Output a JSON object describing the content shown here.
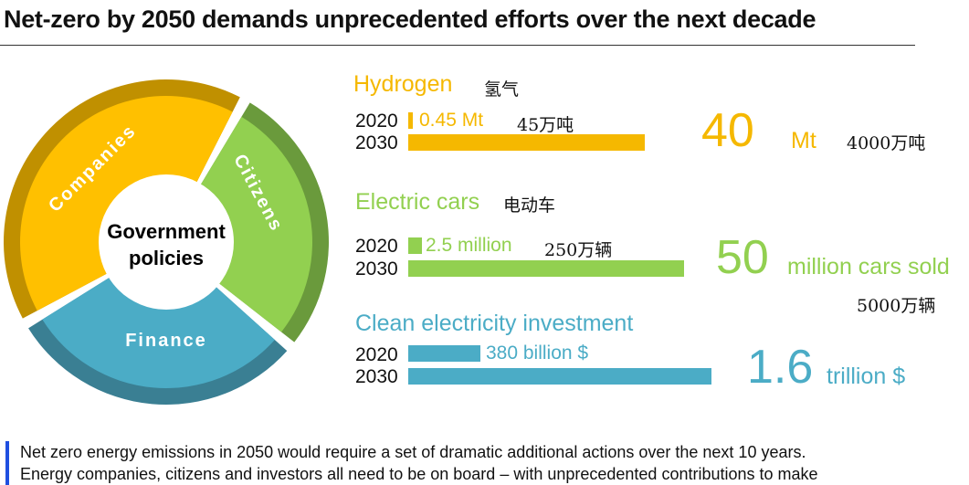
{
  "title": "Net-zero by 2050 demands unprecedented efforts over the next decade",
  "colors": {
    "hydrogen": "#f5b800",
    "electric": "#92d050",
    "clean": "#4bacc6",
    "companies_dark": "#c09000",
    "citizens_dark": "#6a9a3c",
    "finance_dark": "#3a7f93",
    "accent_bar": "#1f4fe0"
  },
  "diagram": {
    "center_line1": "Government",
    "center_line2": "policies",
    "segments": [
      "Companies",
      "Citizens",
      "Finance"
    ]
  },
  "chart_data": {
    "type": "bar",
    "categories": [
      "2020",
      "2030"
    ],
    "groups": [
      {
        "name": "Hydrogen",
        "name_cn": "氢气",
        "values": [
          0.45,
          40
        ],
        "unit": "Mt",
        "label_2020": "0.45 Mt",
        "label_2020_cn": "45万吨",
        "big_value": "40",
        "big_unit": "Mt",
        "big_cn": "4000万吨"
      },
      {
        "name": "Electric cars",
        "name_cn": "电动车",
        "values": [
          2.5,
          50
        ],
        "unit": "million cars sold",
        "label_2020": "2.5 million",
        "label_2020_cn": "250万辆",
        "big_value": "50",
        "big_unit": "million cars sold",
        "big_cn": "5000万辆"
      },
      {
        "name": "Clean electricity investment",
        "values": [
          380,
          1600
        ],
        "unit": "billion $",
        "label_2020": "380 billion $",
        "big_value": "1.6",
        "big_unit": "trillion $"
      }
    ]
  },
  "note": {
    "line1": "Net zero energy emissions in 2050 would require a set of dramatic additional actions over the next 10 years.",
    "line2": "Energy companies, citizens and investors all need to be on board – with unprecedented contributions to make"
  }
}
